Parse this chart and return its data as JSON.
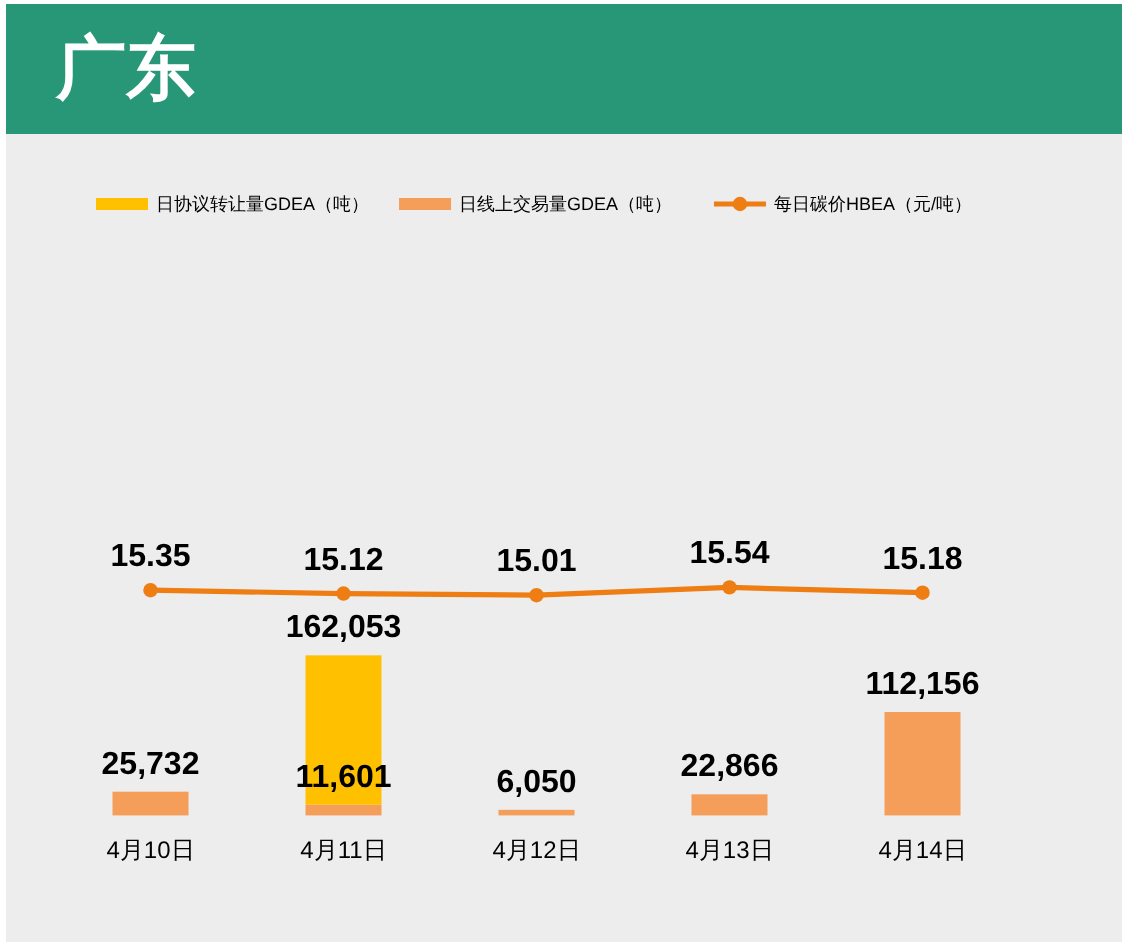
{
  "chart_data": [
    {
      "type": "line",
      "title": "广东",
      "categories": [
        null,
        null,
        null,
        null,
        null
      ],
      "data_labels": true,
      "legend": "top right",
      "marker": "circle",
      "series": [
        {
          "name": "每日碳价HBEA（元/吨）",
          "color": "#ee7d13",
          "values": [
            15.35,
            15.12,
            15.01,
            15.54,
            15.18
          ]
        }
      ]
    },
    {
      "type": "bar",
      "categories": [
        "4月10日",
        "4月11日",
        "4月12日",
        "4月13日",
        "4月14日"
      ],
      "stacked": true,
      "legend": "top left",
      "series": [
        {
          "name": "日线上交易量GDEA（吨）",
          "color": "#f59e5a",
          "values": [
            25732,
            11601,
            6050,
            22866,
            112156
          ],
          "value_labels": [
            "25,732",
            "11,601",
            "6,050",
            "22,866",
            "112,156"
          ]
        },
        {
          "name": "日协议转让量GDEA（吨）",
          "color": "#ffc000",
          "values": [
            null,
            162053,
            null,
            null,
            null
          ],
          "value_labels": [
            null,
            "162,053",
            null,
            null,
            null
          ]
        }
      ]
    }
  ]
}
